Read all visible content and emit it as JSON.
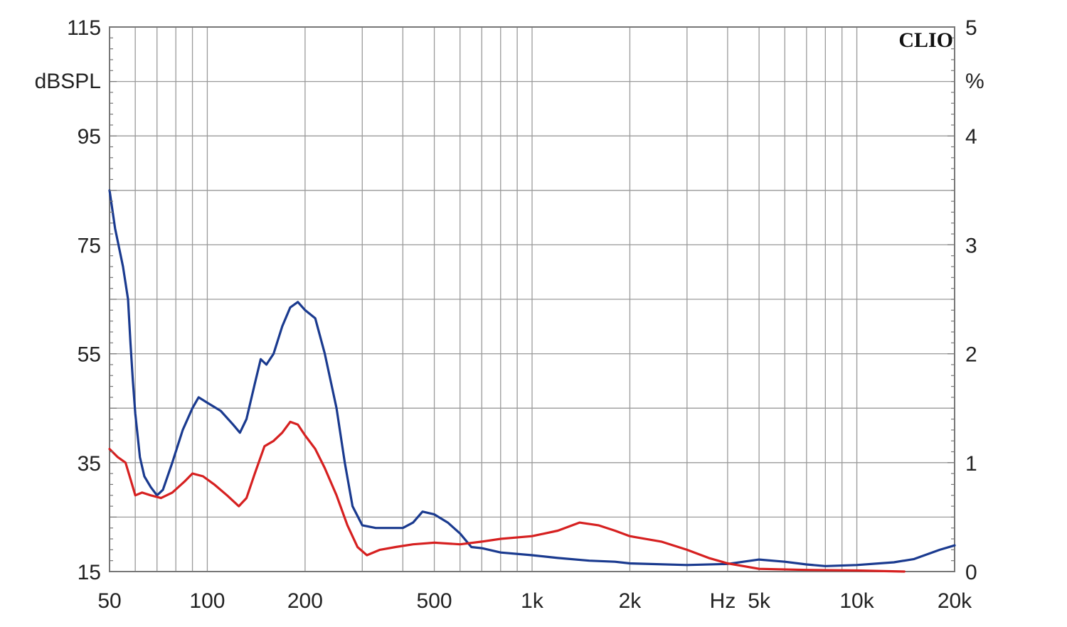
{
  "chart_data": {
    "type": "line",
    "title": "",
    "brand": "CLIO",
    "left_axis": {
      "unit": "dBSPL",
      "ylim": [
        15,
        115
      ],
      "tick_labels": [
        "115",
        "95",
        "75",
        "55",
        "35",
        "15"
      ]
    },
    "right_axis": {
      "unit": "%",
      "ylim": [
        0,
        5
      ],
      "tick_labels": [
        "5",
        "4",
        "3",
        "2",
        "1",
        "0"
      ]
    },
    "x_axis": {
      "scale": "log",
      "unit": "Hz",
      "xlim": [
        50,
        20000
      ],
      "tick_labels": [
        "50",
        "100",
        "200",
        "500",
        "1k",
        "2k",
        "5k",
        "10k",
        "20k"
      ],
      "tick_values": [
        50,
        100,
        200,
        500,
        1000,
        2000,
        5000,
        10000,
        20000
      ]
    },
    "grid": true,
    "series": [
      {
        "color": "#1a3a8f",
        "axis": "left",
        "points": [
          [
            50,
            85
          ],
          [
            52,
            78
          ],
          [
            55,
            71
          ],
          [
            57,
            65
          ],
          [
            58,
            57
          ],
          [
            59,
            50
          ],
          [
            60,
            44
          ],
          [
            62,
            36
          ],
          [
            64,
            32.5
          ],
          [
            67,
            30.5
          ],
          [
            70,
            29
          ],
          [
            73,
            30
          ],
          [
            78,
            35
          ],
          [
            84,
            41
          ],
          [
            90,
            45
          ],
          [
            94,
            47
          ],
          [
            100,
            46
          ],
          [
            110,
            44.5
          ],
          [
            120,
            42
          ],
          [
            126,
            40.5
          ],
          [
            132,
            43
          ],
          [
            140,
            49.5
          ],
          [
            146,
            54
          ],
          [
            152,
            53
          ],
          [
            160,
            55
          ],
          [
            170,
            60
          ],
          [
            180,
            63.5
          ],
          [
            190,
            64.5
          ],
          [
            200,
            63
          ],
          [
            215,
            61.5
          ],
          [
            230,
            55
          ],
          [
            250,
            45
          ],
          [
            265,
            35
          ],
          [
            280,
            27
          ],
          [
            300,
            23.5
          ],
          [
            330,
            23
          ],
          [
            350,
            23
          ],
          [
            400,
            23
          ],
          [
            430,
            24
          ],
          [
            460,
            26
          ],
          [
            500,
            25.5
          ],
          [
            550,
            24
          ],
          [
            600,
            22
          ],
          [
            650,
            19.5
          ],
          [
            700,
            19.3
          ],
          [
            800,
            18.5
          ],
          [
            1000,
            18
          ],
          [
            1200,
            17.5
          ],
          [
            1500,
            17
          ],
          [
            1800,
            16.8
          ],
          [
            2000,
            16.5
          ],
          [
            3000,
            16.2
          ],
          [
            4000,
            16.4
          ],
          [
            5000,
            17.2
          ],
          [
            6000,
            16.8
          ],
          [
            7000,
            16.3
          ],
          [
            8000,
            16
          ],
          [
            10000,
            16.2
          ],
          [
            13000,
            16.7
          ],
          [
            15000,
            17.3
          ],
          [
            18000,
            19
          ],
          [
            20000,
            19.8
          ]
        ]
      },
      {
        "color": "#d62020",
        "axis": "left",
        "points": [
          [
            50,
            37.5
          ],
          [
            53,
            36
          ],
          [
            56,
            35
          ],
          [
            58,
            32
          ],
          [
            60,
            29
          ],
          [
            63,
            29.5
          ],
          [
            67,
            29
          ],
          [
            72,
            28.5
          ],
          [
            78,
            29.5
          ],
          [
            85,
            31.5
          ],
          [
            90,
            33
          ],
          [
            97,
            32.5
          ],
          [
            105,
            31
          ],
          [
            115,
            29
          ],
          [
            125,
            27
          ],
          [
            132,
            28.5
          ],
          [
            140,
            33
          ],
          [
            150,
            38
          ],
          [
            160,
            39
          ],
          [
            170,
            40.5
          ],
          [
            180,
            42.5
          ],
          [
            190,
            42
          ],
          [
            200,
            40
          ],
          [
            215,
            37.5
          ],
          [
            230,
            34
          ],
          [
            250,
            29
          ],
          [
            270,
            23.5
          ],
          [
            290,
            19.5
          ],
          [
            310,
            18
          ],
          [
            340,
            19
          ],
          [
            380,
            19.5
          ],
          [
            430,
            20
          ],
          [
            500,
            20.3
          ],
          [
            600,
            20
          ],
          [
            700,
            20.5
          ],
          [
            800,
            21
          ],
          [
            1000,
            21.5
          ],
          [
            1200,
            22.5
          ],
          [
            1400,
            24
          ],
          [
            1600,
            23.5
          ],
          [
            1800,
            22.5
          ],
          [
            2000,
            21.5
          ],
          [
            2500,
            20.5
          ],
          [
            3000,
            19
          ],
          [
            3500,
            17.5
          ],
          [
            4000,
            16.5
          ],
          [
            5000,
            15.5
          ],
          [
            7000,
            15.3
          ],
          [
            10000,
            15.2
          ],
          [
            14000,
            15
          ]
        ]
      }
    ]
  }
}
